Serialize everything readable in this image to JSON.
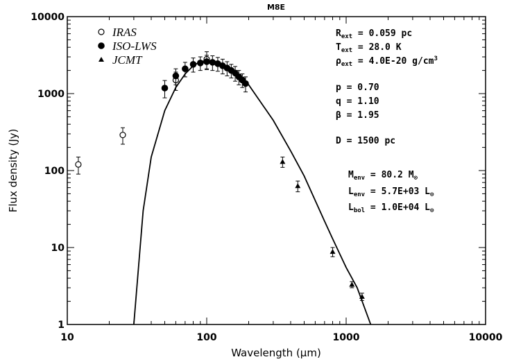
{
  "chart_data": {
    "type": "scatter",
    "title": "M8E",
    "x_label": "Wavelength (μm)",
    "y_label": "Flux density (Jy)",
    "xlim": [
      10,
      10000
    ],
    "ylim": [
      1,
      10000
    ],
    "xticks": [
      10,
      100,
      1000,
      10000
    ],
    "yticks": [
      1,
      10,
      100,
      1000,
      10000
    ],
    "xscale": "log",
    "yscale": "log",
    "legend": "upper left",
    "series": [
      {
        "name": "IRAS",
        "marker": "open-circle",
        "color": "#000000",
        "x": [
          12,
          25,
          60,
          100
        ],
        "values": [
          120,
          290,
          1500,
          2800
        ],
        "errors": [
          30,
          70,
          400,
          700
        ]
      },
      {
        "name": "ISO-LWS",
        "marker": "filled-circle",
        "color": "#000000",
        "x": [
          50,
          60,
          70,
          80,
          90,
          100,
          110,
          120,
          130,
          140,
          150,
          160,
          170,
          180,
          190
        ],
        "values": [
          1180,
          1700,
          2100,
          2400,
          2500,
          2600,
          2550,
          2450,
          2300,
          2150,
          2000,
          1850,
          1650,
          1500,
          1350
        ],
        "errors": [
          300,
          400,
          450,
          500,
          500,
          550,
          550,
          500,
          500,
          450,
          400,
          400,
          350,
          300,
          300
        ]
      },
      {
        "name": "JCMT",
        "marker": "triangle",
        "color": "#000000",
        "x": [
          350,
          450,
          800,
          1100,
          1300
        ],
        "values": [
          130,
          63,
          8.8,
          3.3,
          2.3
        ],
        "errors": [
          20,
          10,
          1.2,
          0.3,
          0.25
        ]
      }
    ],
    "model": {
      "type": "line",
      "color": "#000000",
      "x": [
        30,
        35,
        40,
        50,
        60,
        70,
        80,
        90,
        100,
        120,
        150,
        200,
        300,
        400,
        500,
        700,
        800,
        1000,
        1200,
        1500
      ],
      "values": [
        1,
        30,
        150,
        600,
        1200,
        1800,
        2300,
        2600,
        2700,
        2600,
        2100,
        1300,
        450,
        180,
        85,
        22,
        13,
        5.5,
        3,
        1
      ]
    },
    "annotations": [
      [
        {
          "text": "R"
        },
        {
          "text": "ext",
          "shift": "sub"
        },
        {
          "text": " = 0.059 pc"
        }
      ],
      [
        {
          "text": "T"
        },
        {
          "text": "ext",
          "shift": "sub"
        },
        {
          "text": " = 28.0 K"
        }
      ],
      [
        {
          "text": "ρ"
        },
        {
          "text": "ext",
          "shift": "sub"
        },
        {
          "text": " = 4.0E-20 g/cm"
        },
        {
          "text": "3",
          "shift": "sup"
        }
      ],
      [
        {
          "text": "p = 0.70"
        }
      ],
      [
        {
          "text": "q = 1.10"
        }
      ],
      [
        {
          "text": "β = 1.95"
        }
      ],
      [
        {
          "text": "D = 1500 pc"
        }
      ],
      [
        {
          "text": "M"
        },
        {
          "text": "env",
          "shift": "sub"
        },
        {
          "text": " = 80.2 M"
        },
        {
          "text": "⊙",
          "shift": "sub"
        }
      ],
      [
        {
          "text": "L"
        },
        {
          "text": "env",
          "shift": "sub"
        },
        {
          "text": " = 5.7E+03 L"
        },
        {
          "text": "⊙",
          "shift": "sub"
        }
      ],
      [
        {
          "text": "L"
        },
        {
          "text": "bol",
          "shift": "sub"
        },
        {
          "text": " = 1.0E+04 L"
        },
        {
          "text": "⊙",
          "shift": "sub"
        }
      ]
    ]
  }
}
